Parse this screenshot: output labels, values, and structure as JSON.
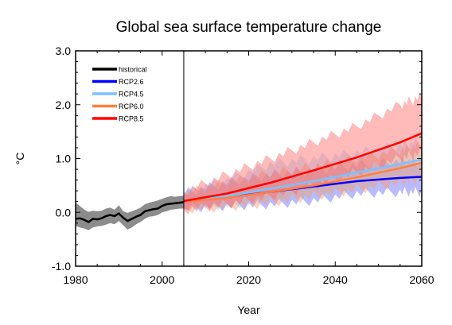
{
  "chart_data": {
    "type": "line",
    "title": "Global sea surface temperature change",
    "xlabel": "Year",
    "ylabel": "°C",
    "xlim": [
      1980,
      2060
    ],
    "ylim": [
      -1.0,
      3.0
    ],
    "x_ticks": [
      1980,
      2000,
      2020,
      2040,
      2060
    ],
    "x_tick_labels": [
      "1980",
      "2000",
      "2020",
      "2040",
      "2060"
    ],
    "y_ticks": [
      -1.0,
      0.0,
      1.0,
      2.0,
      3.0
    ],
    "y_tick_labels": [
      "-1.0",
      "0.0",
      "1.0",
      "2.0",
      "3.0"
    ],
    "divider_year": 2005,
    "grid": false,
    "legend_position": "top-left",
    "series": [
      {
        "name": "historical",
        "color": "#000000",
        "band_color": "#808080",
        "x": [
          1980,
          1981,
          1982,
          1983,
          1984,
          1985,
          1986,
          1987,
          1988,
          1989,
          1990,
          1991,
          1992,
          1993,
          1994,
          1995,
          1996,
          1997,
          1998,
          1999,
          2000,
          2001,
          2002,
          2003,
          2004,
          2005
        ],
        "mean": [
          -0.12,
          -0.11,
          -0.14,
          -0.18,
          -0.12,
          -0.13,
          -0.11,
          -0.07,
          -0.05,
          -0.07,
          -0.02,
          -0.1,
          -0.16,
          -0.12,
          -0.08,
          -0.05,
          0.02,
          0.04,
          0.06,
          0.07,
          0.12,
          0.15,
          0.16,
          0.17,
          0.18,
          0.19
        ],
        "lower": [
          -0.25,
          -0.28,
          -0.3,
          -0.33,
          -0.28,
          -0.26,
          -0.25,
          -0.23,
          -0.2,
          -0.22,
          -0.16,
          -0.24,
          -0.32,
          -0.28,
          -0.22,
          -0.18,
          -0.12,
          -0.08,
          -0.07,
          -0.05,
          0.0,
          0.02,
          0.05,
          0.06,
          0.07,
          0.07
        ],
        "upper": [
          0.18,
          0.12,
          0.05,
          0.01,
          0.03,
          0.02,
          0.03,
          0.07,
          0.09,
          0.05,
          0.13,
          0.02,
          -0.01,
          0.02,
          0.05,
          0.09,
          0.15,
          0.18,
          0.2,
          0.22,
          0.25,
          0.28,
          0.3,
          0.29,
          0.3,
          0.31
        ]
      },
      {
        "name": "RCP2.6",
        "color": "#0000ff",
        "band_color": "#6666ff",
        "x": [
          2005,
          2015,
          2025,
          2035,
          2045,
          2055,
          2060
        ],
        "mean": [
          0.2,
          0.28,
          0.38,
          0.48,
          0.58,
          0.64,
          0.66
        ],
        "lower": [
          0.08,
          0.12,
          0.15,
          0.22,
          0.35,
          0.38,
          0.38
        ],
        "upper": [
          0.35,
          0.55,
          0.7,
          0.78,
          0.88,
          0.95,
          0.92
        ]
      },
      {
        "name": "RCP4.5",
        "color": "#7fbfff",
        "band_color": "#99ccff",
        "x": [
          2005,
          2015,
          2025,
          2035,
          2045,
          2055,
          2060
        ],
        "mean": [
          0.21,
          0.3,
          0.44,
          0.58,
          0.74,
          0.9,
          0.98
        ],
        "lower": [
          0.08,
          0.14,
          0.22,
          0.32,
          0.45,
          0.6,
          0.68
        ],
        "upper": [
          0.36,
          0.6,
          0.9,
          1.0,
          1.1,
          1.25,
          1.32
        ]
      },
      {
        "name": "RCP6.0",
        "color": "#ff7f3f",
        "band_color": "#ff9966",
        "x": [
          2005,
          2015,
          2025,
          2035,
          2045,
          2055,
          2060
        ],
        "mean": [
          0.2,
          0.27,
          0.38,
          0.5,
          0.65,
          0.82,
          0.92
        ],
        "lower": [
          0.06,
          0.1,
          0.18,
          0.3,
          0.42,
          0.55,
          0.62
        ],
        "upper": [
          0.35,
          0.55,
          0.72,
          0.85,
          1.0,
          1.15,
          1.25
        ]
      },
      {
        "name": "RCP8.5",
        "color": "#ff0000",
        "band_color": "#ff6666",
        "x": [
          2005,
          2015,
          2025,
          2035,
          2045,
          2055,
          2060
        ],
        "mean": [
          0.21,
          0.35,
          0.55,
          0.78,
          1.02,
          1.3,
          1.47
        ],
        "lower": [
          0.05,
          0.15,
          0.3,
          0.5,
          0.75,
          1.0,
          1.12
        ],
        "upper": [
          0.38,
          0.7,
          1.0,
          1.3,
          1.6,
          2.0,
          2.15
        ]
      }
    ]
  }
}
